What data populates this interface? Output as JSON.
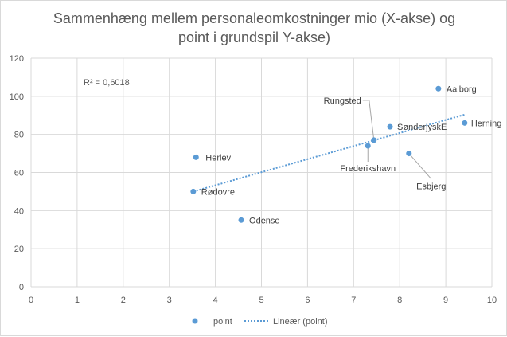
{
  "chart_data": {
    "type": "scatter",
    "title_lines": [
      "Sammenhæng mellem personaleomkostninger mio (X-akse) og",
      "point i grundspil Y-akse)"
    ],
    "xlim": [
      0,
      10
    ],
    "ylim": [
      0,
      120
    ],
    "x_ticks": [
      0,
      1,
      2,
      3,
      4,
      5,
      6,
      7,
      8,
      9,
      10
    ],
    "y_ticks": [
      0,
      20,
      40,
      60,
      80,
      100,
      120
    ],
    "grid": true,
    "r_squared_label": "R² = 0,6018",
    "points": [
      {
        "label": "Aalborg",
        "x": 8.84,
        "y": 104
      },
      {
        "label": "Herning",
        "x": 9.41,
        "y": 86
      },
      {
        "label": "SønderjyskE",
        "x": 7.79,
        "y": 84
      },
      {
        "label": "Rungsted",
        "x": 7.44,
        "y": 77
      },
      {
        "label": "Frederikshavn",
        "x": 7.31,
        "y": 74
      },
      {
        "label": "Esbjerg",
        "x": 8.2,
        "y": 70
      },
      {
        "label": "Herlev",
        "x": 3.58,
        "y": 68
      },
      {
        "label": "Rødovre",
        "x": 3.52,
        "y": 50
      },
      {
        "label": "Odense",
        "x": 4.56,
        "y": 35
      }
    ],
    "trendline": {
      "type": "linear",
      "x": [
        3.52,
        9.41
      ],
      "y": [
        50,
        90.4
      ]
    },
    "legend": {
      "placement": "bottom",
      "entries": [
        "point",
        "Lineær (point)"
      ]
    },
    "colors": {
      "point": "#5b9bd5",
      "grid": "#d9d9d9",
      "text": "#595959"
    }
  }
}
